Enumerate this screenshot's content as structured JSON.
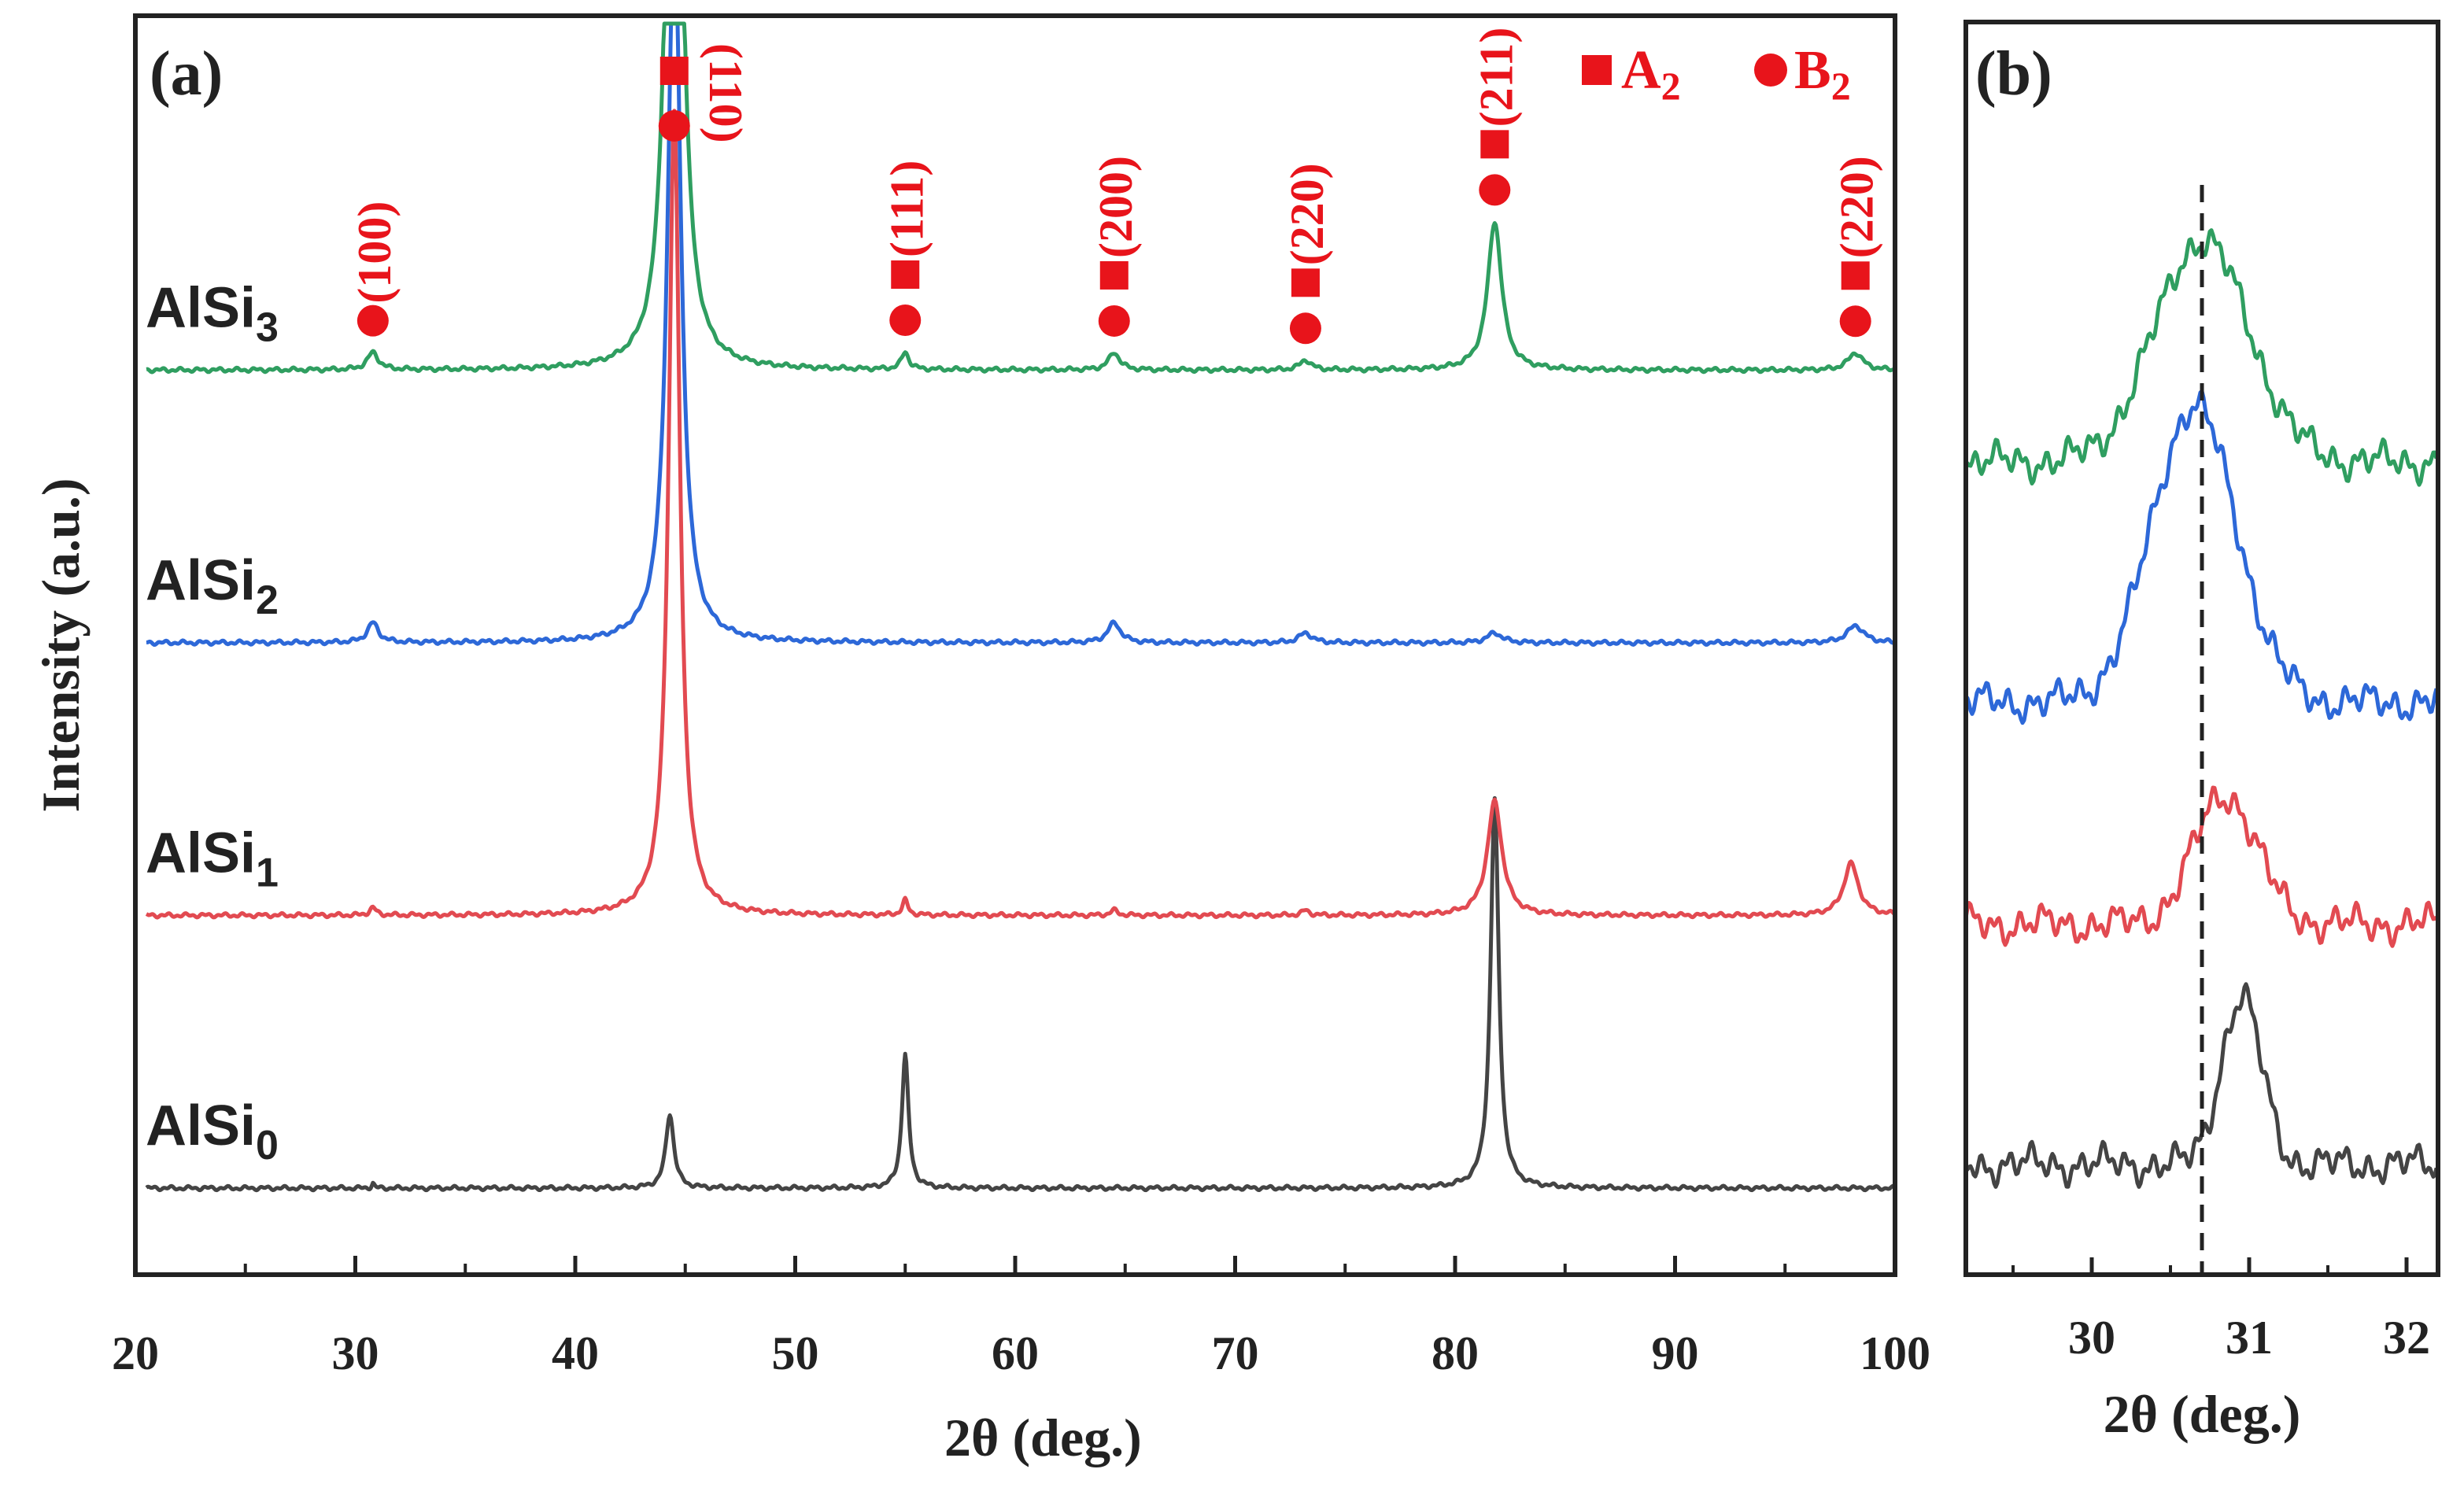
{
  "colors": {
    "marker": "#e8141b",
    "axis": "#222222",
    "AlSi0": "#444444",
    "AlSi1": "#e24a51",
    "AlSi2": "#2d68d8",
    "AlSi3": "#2f9e60"
  },
  "chart_data": [
    {
      "panel": "(a)",
      "type": "line",
      "xlabel": "2θ (deg.)",
      "ylabel": "Intensity (a.u.)",
      "xlim": [
        20,
        100
      ],
      "xticks": [
        "20",
        "30",
        "40",
        "50",
        "60",
        "70",
        "80",
        "90",
        "100"
      ],
      "legend": [
        {
          "marker": "square",
          "label": "A",
          "sub": "2"
        },
        {
          "marker": "circle",
          "label": "B",
          "sub": "2"
        }
      ],
      "series": [
        {
          "name": "AlSi0",
          "base": "AlSi",
          "sub": "0",
          "offset": 0,
          "color": "#444444",
          "peaks": [
            [
              30.8,
              0.2,
              0.07
            ],
            [
              44.3,
              3.0,
              0.22
            ],
            [
              55.0,
              5.4,
              0.18
            ],
            [
              81.8,
              15.7,
              0.22
            ]
          ]
        },
        {
          "name": "AlSi1",
          "base": "AlSi",
          "sub": "1",
          "offset": 11,
          "color": "#e24a51",
          "peaks": [
            [
              30.8,
              0.3,
              0.18
            ],
            [
              44.5,
              32.5,
              0.3
            ],
            [
              55.0,
              0.6,
              0.15
            ],
            [
              64.5,
              0.2,
              0.2
            ],
            [
              73.2,
              0.2,
              0.2
            ],
            [
              81.8,
              4.6,
              0.4
            ],
            [
              98.0,
              2.1,
              0.4
            ]
          ]
        },
        {
          "name": "AlSi2",
          "base": "AlSi",
          "sub": "2",
          "offset": 22,
          "color": "#2d68d8",
          "peaks": [
            [
              30.8,
              0.8,
              0.3
            ],
            [
              44.5,
              30.0,
              0.35
            ],
            [
              64.5,
              0.8,
              0.35
            ],
            [
              73.2,
              0.4,
              0.35
            ],
            [
              81.8,
              0.4,
              0.4
            ],
            [
              98.2,
              0.7,
              0.45
            ]
          ]
        },
        {
          "name": "AlSi3",
          "base": "AlSi",
          "sub": "3",
          "offset": 33,
          "color": "#2f9e60",
          "peaks": [
            [
              30.8,
              0.7,
              0.3
            ],
            [
              44.5,
              40.0,
              0.35
            ],
            [
              55.0,
              0.7,
              0.2
            ],
            [
              64.5,
              0.7,
              0.3
            ],
            [
              73.2,
              0.4,
              0.3
            ],
            [
              81.8,
              6.0,
              0.38
            ],
            [
              98.2,
              0.7,
              0.4
            ]
          ]
        }
      ],
      "annotations": [
        {
          "x": 30.8,
          "hkl": "(100)",
          "markers": [
            "circle"
          ]
        },
        {
          "x": 44.5,
          "hkl": "(110)",
          "markers": [
            "square",
            "circle"
          ]
        },
        {
          "x": 55.0,
          "hkl": "(111)",
          "markers": [
            "square",
            "circle"
          ]
        },
        {
          "x": 64.5,
          "hkl": "(200)",
          "markers": [
            "square",
            "circle"
          ]
        },
        {
          "x": 73.2,
          "hkl": "(220)",
          "markers": [
            "square",
            "circle"
          ]
        },
        {
          "x": 81.8,
          "hkl": "(211)",
          "markers": [
            "square",
            "circle"
          ]
        },
        {
          "x": 98.2,
          "hkl": "(220)",
          "markers": [
            "square",
            "circle"
          ]
        }
      ]
    },
    {
      "panel": "(b)",
      "type": "line",
      "xlabel": "2θ (deg.)",
      "xlim": [
        29.2,
        32.2
      ],
      "xticks": [
        "30",
        "31",
        "32"
      ],
      "reference_line_x": 30.7,
      "series": [
        {
          "name": "AlSi0",
          "color": "#444444",
          "offset": 0,
          "peak_center": 30.95,
          "peak_height": 9,
          "peak_width": 0.13
        },
        {
          "name": "AlSi1",
          "color": "#e24a51",
          "offset": 13,
          "peak_center": 30.85,
          "peak_height": 7,
          "peak_width": 0.2
        },
        {
          "name": "AlSi2",
          "color": "#2d68d8",
          "offset": 25,
          "peak_center": 30.65,
          "peak_height": 16,
          "peak_width": 0.27
        },
        {
          "name": "AlSi3",
          "color": "#2f9e60",
          "offset": 38,
          "peak_center": 30.7,
          "peak_height": 12,
          "peak_width": 0.3
        }
      ]
    }
  ]
}
